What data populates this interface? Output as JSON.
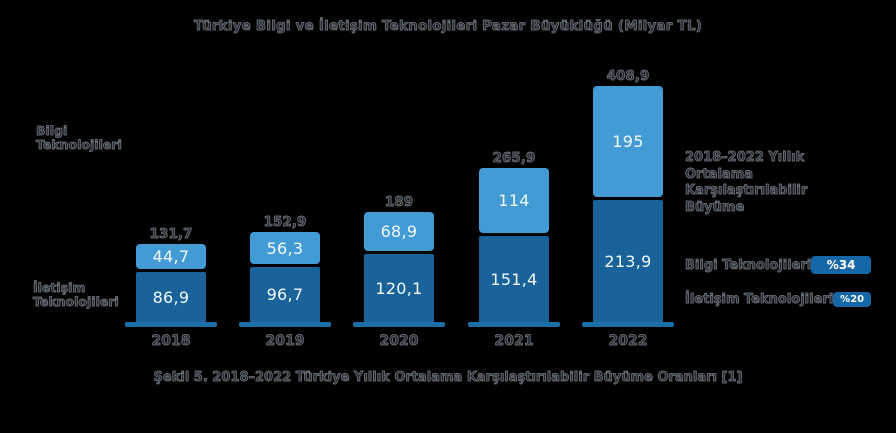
{
  "title": "Türkiye Bilgi ve İletişim Teknolojileri Pazar Büyüklüğü (Milyar TL)",
  "caption": "Şekil 5. 2018–2022 Türkiye Yıllık Ortalama Karşılaştırılabilir Büyüme Oranları [1]",
  "axis_labels": {
    "top_left_line1": "Bilgi",
    "top_left_line2": "Teknolojileri",
    "bottom_left_line1": "İletişim",
    "bottom_left_line2": "Teknolojileri"
  },
  "legend": {
    "header_line1": "2018–2022 Yıllık Ortalama",
    "header_line2": "Karşılaştırılabilir Büyüme",
    "items": [
      {
        "label": "Bilgi Teknolojileri",
        "badge": "%34"
      },
      {
        "label": "İletişim Teknolojileri",
        "badge": "%20"
      }
    ]
  },
  "colors": {
    "background": "#000000",
    "bilgi_segment": "#429BD5",
    "iletisim_segment": "#19639A",
    "pedestal": "#1C6FA6",
    "badge": "#1667A8",
    "bar_value_text": "#F4F8FB"
  },
  "chart_data": {
    "type": "bar",
    "stacked": true,
    "title": "Türkiye Bilgi ve İletişim Teknolojileri Pazar Büyüklüğü (Milyar TL)",
    "unit": "Milyar TL",
    "xlabel": "",
    "ylabel": "",
    "categories": [
      "2018",
      "2019",
      "2020",
      "2021",
      "2022"
    ],
    "series": [
      {
        "name": "İletişim Teknolojileri",
        "color": "#19639A",
        "values": [
          86.9,
          96.7,
          120.1,
          151.4,
          213.9
        ],
        "labels": [
          "86,9",
          "96,7",
          "120,1",
          "151,4",
          "213,9"
        ]
      },
      {
        "name": "Bilgi Teknolojileri",
        "color": "#429BD5",
        "values": [
          44.7,
          56.3,
          68.9,
          114,
          195
        ],
        "labels": [
          "44,7",
          "56,3",
          "68,9",
          "114",
          "195"
        ]
      }
    ],
    "totals_values": [
      131.7,
      152.9,
      189,
      265.9,
      408.9
    ],
    "totals_labels": [
      "131,7",
      "152,9",
      "189",
      "265,9",
      "408,9"
    ],
    "growth_rates": [
      {
        "name": "Bilgi Teknolojileri",
        "rate": "%34"
      },
      {
        "name": "İletişim Teknolojileri",
        "rate": "%20"
      }
    ]
  }
}
